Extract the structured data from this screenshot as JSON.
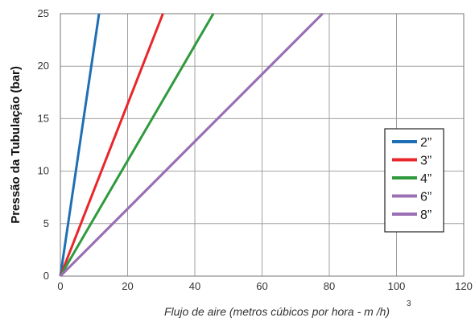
{
  "chart_data": {
    "type": "line",
    "xlabel": "Flujo de aire (metros cúbicos por hora - m /h)",
    "xlabel_superscript": "3",
    "ylabel": "Pressão da Tubulação (bar)",
    "xlim": [
      0,
      120
    ],
    "ylim": [
      0,
      25
    ],
    "x_ticks": [
      "0",
      "20",
      "40",
      "60",
      "80",
      "100",
      "120"
    ],
    "y_ticks": [
      "0",
      "5",
      "10",
      "15",
      "20",
      "25"
    ],
    "grid": true,
    "legend_position": "right",
    "series": [
      {
        "name": "2”",
        "color": "#1f6fb5",
        "x": [
          0,
          11.5
        ],
        "y": [
          0,
          25
        ]
      },
      {
        "name": "3”",
        "color": "#e8262b",
        "x": [
          0,
          30.5
        ],
        "y": [
          0,
          25
        ]
      },
      {
        "name": "4”",
        "color": "#2f9a3e",
        "x": [
          0,
          45.5
        ],
        "y": [
          0,
          25
        ]
      },
      {
        "name": "6”",
        "color": "#9b6fb3",
        "x": [
          0,
          78
        ],
        "y": [
          0,
          25
        ]
      },
      {
        "name": "8”",
        "color": "#9b6fb3",
        "x": [
          0,
          78
        ],
        "y": [
          0,
          25
        ]
      }
    ]
  }
}
